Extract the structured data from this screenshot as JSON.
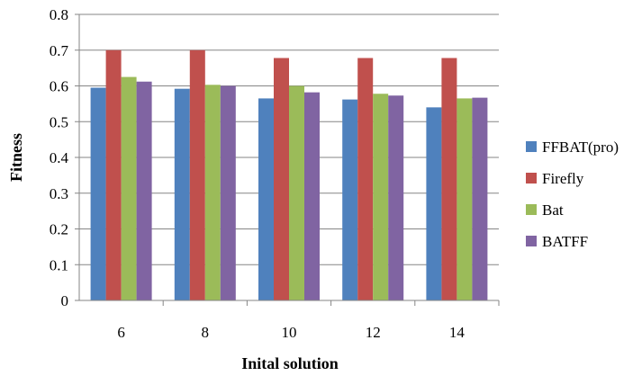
{
  "chart_data": {
    "type": "bar",
    "title": "",
    "xlabel": "Inital solution",
    "ylabel": "Fitness",
    "categories": [
      "6",
      "8",
      "10",
      "12",
      "14"
    ],
    "ylim": [
      0,
      0.8
    ],
    "yticks": [
      "0",
      "0.1",
      "0.2",
      "0.3",
      "0.4",
      "0.5",
      "0.6",
      "0.7",
      "0.8"
    ],
    "grid": true,
    "legend_position": "right",
    "series": [
      {
        "name": "FFBAT(pro)",
        "color": "#4F81BD",
        "values": [
          0.595,
          0.592,
          0.565,
          0.562,
          0.54
        ]
      },
      {
        "name": "Firefly",
        "color": "#C0504D",
        "values": [
          0.7,
          0.7,
          0.678,
          0.678,
          0.678
        ]
      },
      {
        "name": "Bat",
        "color": "#9BBB59",
        "values": [
          0.625,
          0.603,
          0.6,
          0.578,
          0.565
        ]
      },
      {
        "name": "BATFF",
        "color": "#8064A2",
        "values": [
          0.612,
          0.6,
          0.582,
          0.573,
          0.567
        ]
      }
    ]
  }
}
